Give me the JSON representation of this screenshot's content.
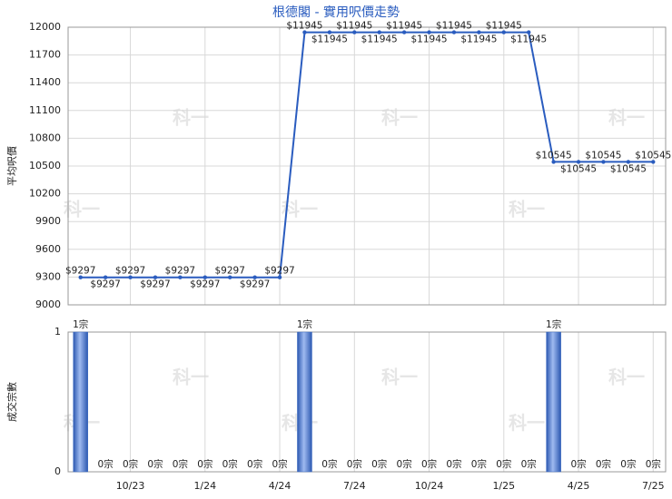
{
  "chart_data": [
    {
      "type": "line",
      "title": "根德閣 - 實用呎價走勢",
      "y_label": "平均呎價",
      "color": "#2a5cbf",
      "grid": true,
      "watermark": "科一",
      "values": [
        9297,
        9297,
        9297,
        9297,
        9297,
        9297,
        9297,
        9297,
        9297,
        11945,
        11945,
        11945,
        11945,
        11945,
        11945,
        11945,
        11945,
        11945,
        11945,
        10545,
        10545,
        10545,
        10545,
        10545
      ],
      "value_labels": [
        "$9297",
        "$9297",
        "$9297",
        "$9297",
        "$9297",
        "$9297",
        "$9297",
        "$9297",
        "$9297",
        "$11945",
        "$11945",
        "$11945",
        "$11945",
        "$11945",
        "$11945",
        "$11945",
        "$11945",
        "$11945",
        "$11945",
        "$10545",
        "$10545",
        "$10545",
        "$10545",
        "$10545"
      ],
      "ylim": [
        9000,
        12000
      ],
      "yticks": [
        9000,
        9300,
        9600,
        9900,
        10200,
        10500,
        10800,
        11100,
        11400,
        11700,
        12000
      ]
    },
    {
      "type": "bar",
      "y_label": "成交宗數",
      "color": "#3d6cc4",
      "grid": true,
      "categories": [
        null,
        null,
        "10/23",
        null,
        null,
        "1/24",
        null,
        null,
        "4/24",
        null,
        null,
        "7/24",
        null,
        null,
        "10/24",
        null,
        null,
        "1/25",
        null,
        null,
        "4/25",
        null,
        null,
        "7/25"
      ],
      "values": [
        1,
        0,
        0,
        0,
        0,
        0,
        0,
        0,
        0,
        1,
        0,
        0,
        0,
        0,
        0,
        0,
        0,
        0,
        0,
        1,
        0,
        0,
        0,
        0
      ],
      "value_labels": [
        "1宗",
        "0宗",
        "0宗",
        "0宗",
        "0宗",
        "0宗",
        "0宗",
        "0宗",
        "0宗",
        "1宗",
        "0宗",
        "0宗",
        "0宗",
        "0宗",
        "0宗",
        "0宗",
        "0宗",
        "0宗",
        "0宗",
        "1宗",
        "0宗",
        "0宗",
        "0宗",
        "0宗"
      ],
      "ylim": [
        0,
        1
      ],
      "yticks": [
        0,
        1
      ]
    }
  ]
}
